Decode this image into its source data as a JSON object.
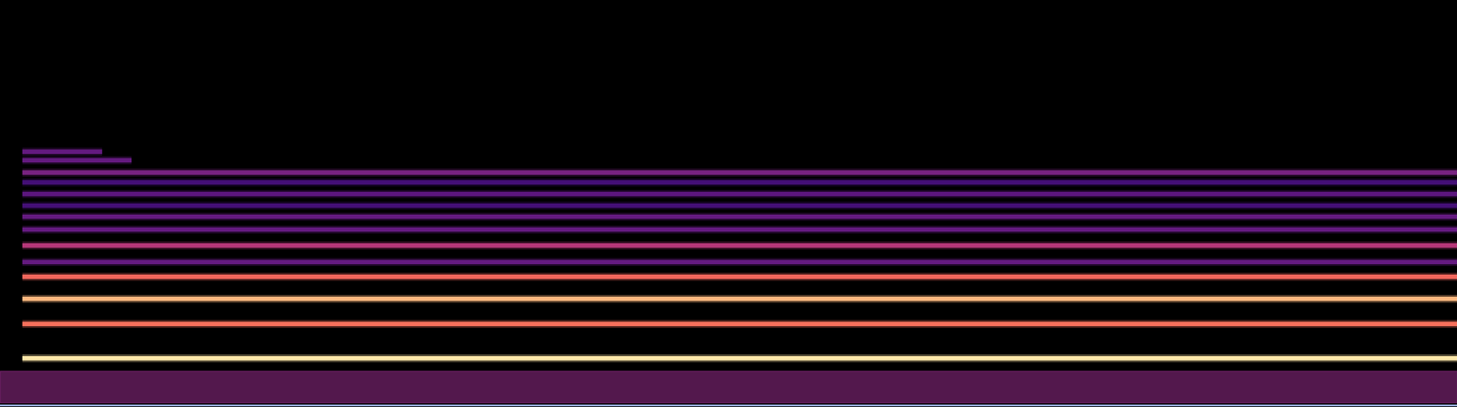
{
  "chart_data": {
    "type": "spectrogram",
    "color": "magma",
    "tick_labels": false,
    "xlim": [
      0,
      100
    ],
    "ylim": [
      0,
      100
    ],
    "intensity_range": [
      0,
      1
    ],
    "noise_band": {
      "low": 0.5,
      "high": 8.5,
      "intensity": 0.4
    },
    "harmonics": [
      {
        "frequency": 11.6,
        "start": 1.5,
        "end": 100,
        "intensity": 0.95
      },
      {
        "frequency": 20.1,
        "start": 1.5,
        "end": 100,
        "intensity": 0.7
      },
      {
        "frequency": 26.3,
        "start": 1.5,
        "end": 100,
        "intensity": 0.85
      },
      {
        "frequency": 31.7,
        "start": 1.5,
        "end": 100,
        "intensity": 0.68
      },
      {
        "frequency": 35.4,
        "start": 1.5,
        "end": 100,
        "intensity": 0.3
      },
      {
        "frequency": 39.5,
        "start": 1.5,
        "end": 100,
        "intensity": 0.5
      },
      {
        "frequency": 43.4,
        "start": 1.5,
        "end": 100,
        "intensity": 0.3
      },
      {
        "frequency": 46.6,
        "start": 1.5,
        "end": 100,
        "intensity": 0.3
      },
      {
        "frequency": 49.3,
        "start": 1.5,
        "end": 100,
        "intensity": 0.22
      },
      {
        "frequency": 52.1,
        "start": 1.5,
        "end": 100,
        "intensity": 0.28
      },
      {
        "frequency": 55.0,
        "start": 1.5,
        "end": 100,
        "intensity": 0.22
      },
      {
        "frequency": 57.5,
        "start": 1.5,
        "end": 100,
        "intensity": 0.35
      },
      {
        "frequency": 60.5,
        "start": 1.5,
        "end": 9,
        "intensity": 0.3
      },
      {
        "frequency": 62.6,
        "start": 1.5,
        "end": 7,
        "intensity": 0.3
      }
    ]
  }
}
